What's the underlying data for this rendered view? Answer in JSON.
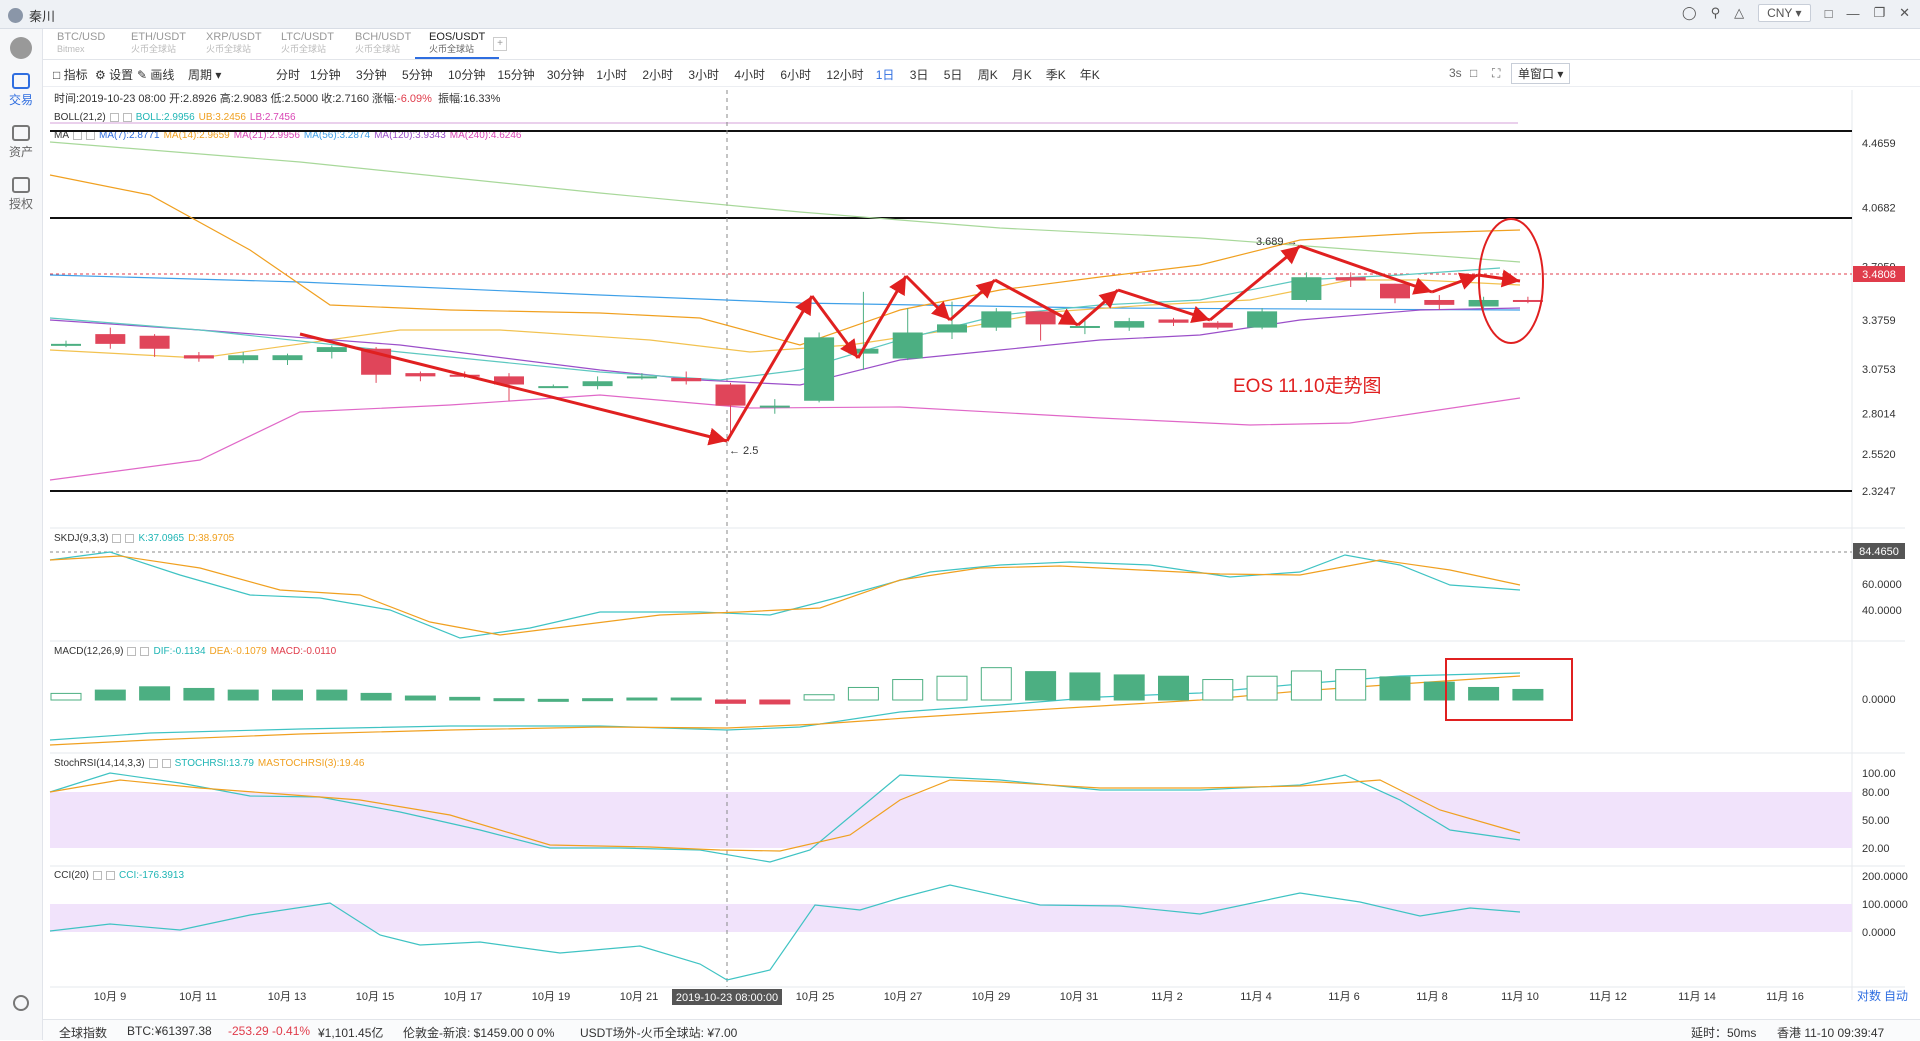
{
  "window": {
    "user": "秦川",
    "currency": "CNY"
  },
  "sidebar": {
    "items": [
      {
        "label": "交易"
      },
      {
        "label": "资产"
      },
      {
        "label": "授权"
      }
    ]
  },
  "tabs": [
    {
      "pair": "BTC/USD",
      "exchange": "Bitmex"
    },
    {
      "pair": "ETH/USDT",
      "exchange": "火币全球站"
    },
    {
      "pair": "XRP/USDT",
      "exchange": "火币全球站"
    },
    {
      "pair": "LTC/USDT",
      "exchange": "火币全球站"
    },
    {
      "pair": "BCH/USDT",
      "exchange": "火币全球站"
    },
    {
      "pair": "EOS/USDT",
      "exchange": "火币全球站"
    }
  ],
  "toolbar": {
    "indicator": "指标",
    "settings": "设置",
    "draw": "画线",
    "period": "周期",
    "intervals": [
      "分时",
      "1分钟",
      "3分钟",
      "5分钟",
      "10分钟",
      "15分钟",
      "30分钟",
      "1小时",
      "2小时",
      "3小时",
      "4小时",
      "6小时",
      "12小时",
      "1日",
      "3日",
      "5日",
      "周K",
      "月K",
      "季K",
      "年K"
    ],
    "active_interval": "1日",
    "refresh": "3s",
    "window_mode": "单窗口"
  },
  "info": {
    "text_before": "时间:2019-10-23 08:00  开:2.8926  高:2.9083  低:2.5000  收:2.7160  涨幅:",
    "change": "-6.09%",
    "amplitude": "振幅:16.33%"
  },
  "indicators": {
    "boll": {
      "name": "BOLL(21,2)",
      "boll": "BOLL:2.9956",
      "ub": "UB:3.2456",
      "lb": "LB:2.7456"
    },
    "ma": {
      "name": "MA",
      "items": [
        "MA(7):2.8771",
        "MA(14):2.9659",
        "MA(21):2.9956",
        "MA(56):3.2874",
        "MA(120):3.9343",
        "MA(240):4.6246"
      ]
    },
    "skdj": {
      "name": "SKDJ(9,3,3)",
      "k": "K:37.0965",
      "d": "D:38.9705"
    },
    "macd": {
      "name": "MACD(12,26,9)",
      "dif": "DIF:-0.1134",
      "dea": "DEA:-0.1079",
      "macd": "MACD:-0.0110"
    },
    "stochrsi": {
      "name": "StochRSI(14,14,3,3)",
      "k": "STOCHRSI:13.79",
      "d": "MASTOCHRSI(3):19.46"
    },
    "cci": {
      "name": "CCI(20)",
      "v": "CCI:-176.3913"
    }
  },
  "annotation": "EOS 11.10走势图",
  "chart_data": {
    "type": "candlestick",
    "price_axis": [
      "4.4659",
      "4.0682",
      "3.7059",
      "3.3759",
      "3.0753",
      "2.8014",
      "2.5520",
      "2.3247"
    ],
    "price_marker": "3.4808",
    "high_label": "3.689 →",
    "low_label": "← 2.5",
    "skdj_axis": [
      "84.4650",
      "60.0000",
      "40.0000"
    ],
    "macd_axis": [
      "0.0000"
    ],
    "stochrsi_axis": [
      "100.00",
      "80.00",
      "50.00",
      "20.00"
    ],
    "cci_axis": [
      "200.0000",
      "100.0000",
      "0.0000"
    ],
    "x_labels": [
      "10月 9",
      "10月 11",
      "10月 13",
      "10月 15",
      "10月 17",
      "10月 19",
      "10月 21",
      "10月 25",
      "10月 27",
      "10月 29",
      "10月 31",
      "11月 2",
      "11月 4",
      "11月 6",
      "11月 8",
      "11月 10",
      "11月 12",
      "11月 14",
      "11月 16"
    ],
    "crosshair_label": "2019-10-23 08:00:00",
    "axis_controls": [
      "对数",
      "自动"
    ],
    "candles": [
      [
        3.22,
        3.23,
        3.25,
        3.21
      ],
      [
        3.29,
        3.23,
        3.33,
        3.2
      ],
      [
        3.28,
        3.2,
        3.29,
        3.15
      ],
      [
        3.16,
        3.14,
        3.18,
        3.12
      ],
      [
        3.13,
        3.16,
        3.18,
        3.11
      ],
      [
        3.13,
        3.16,
        3.17,
        3.1
      ],
      [
        3.18,
        3.21,
        3.22,
        3.14
      ],
      [
        3.2,
        3.04,
        3.21,
        2.99
      ],
      [
        3.05,
        3.03,
        3.06,
        3.0
      ],
      [
        3.04,
        3.03,
        3.06,
        3.02
      ],
      [
        3.03,
        2.98,
        3.05,
        2.88
      ],
      [
        2.97,
        2.97,
        2.98,
        2.96
      ],
      [
        2.97,
        3.0,
        3.03,
        2.95
      ],
      [
        3.02,
        3.03,
        3.05,
        3.01
      ],
      [
        3.02,
        3.0,
        3.06,
        2.98
      ],
      [
        2.98,
        2.85,
        2.99,
        2.68
      ],
      [
        2.85,
        2.85,
        2.89,
        2.8
      ],
      [
        2.88,
        3.27,
        3.3,
        2.87
      ],
      [
        3.17,
        3.2,
        3.55,
        3.07
      ],
      [
        3.14,
        3.3,
        3.45,
        3.13
      ],
      [
        3.3,
        3.35,
        3.49,
        3.26
      ],
      [
        3.33,
        3.43,
        3.45,
        3.31
      ],
      [
        3.43,
        3.35,
        3.43,
        3.25
      ],
      [
        3.34,
        3.34,
        3.38,
        3.29
      ],
      [
        3.33,
        3.37,
        3.39,
        3.31
      ],
      [
        3.38,
        3.36,
        3.39,
        3.34
      ],
      [
        3.36,
        3.33,
        3.37,
        3.32
      ],
      [
        3.33,
        3.43,
        3.45,
        3.32
      ],
      [
        3.5,
        3.64,
        3.67,
        3.49
      ],
      [
        3.64,
        3.62,
        3.67,
        3.58
      ],
      [
        3.6,
        3.51,
        3.6,
        3.48
      ],
      [
        3.5,
        3.47,
        3.53,
        3.44
      ],
      [
        3.46,
        3.5,
        3.52,
        3.45
      ],
      [
        3.5,
        3.49,
        3.52,
        3.48
      ]
    ],
    "macd_hist": [
      0.02,
      0.03,
      0.04,
      0.035,
      0.03,
      0.03,
      0.03,
      0.02,
      0.012,
      0.008,
      0.004,
      0.002,
      0.004,
      0.006,
      0.006,
      -0.01,
      -0.012,
      0.016,
      0.038,
      0.062,
      0.072,
      0.098,
      0.086,
      0.082,
      0.076,
      0.072,
      0.062,
      0.072,
      0.088,
      0.092,
      0.07,
      0.054,
      0.038,
      0.032
    ],
    "legend": [
      "MA(7)",
      "MA(14)",
      "MA(21)",
      "MA(56)",
      "MA(120)",
      "MA(240)"
    ]
  },
  "status": {
    "global": "全球指数",
    "btc_label": "BTC:",
    "btc_price": "¥61397.38",
    "btc_change": "-253.29 -0.41%",
    "btc_vol": "¥1,101.45亿",
    "gold": "伦敦金-新浪:  $1459.00  0  0%",
    "usdt": "USDT场外-火币全球站:  ¥7.00",
    "latency": "延时：50ms",
    "clock": "香港 11-10 09:39:47"
  }
}
